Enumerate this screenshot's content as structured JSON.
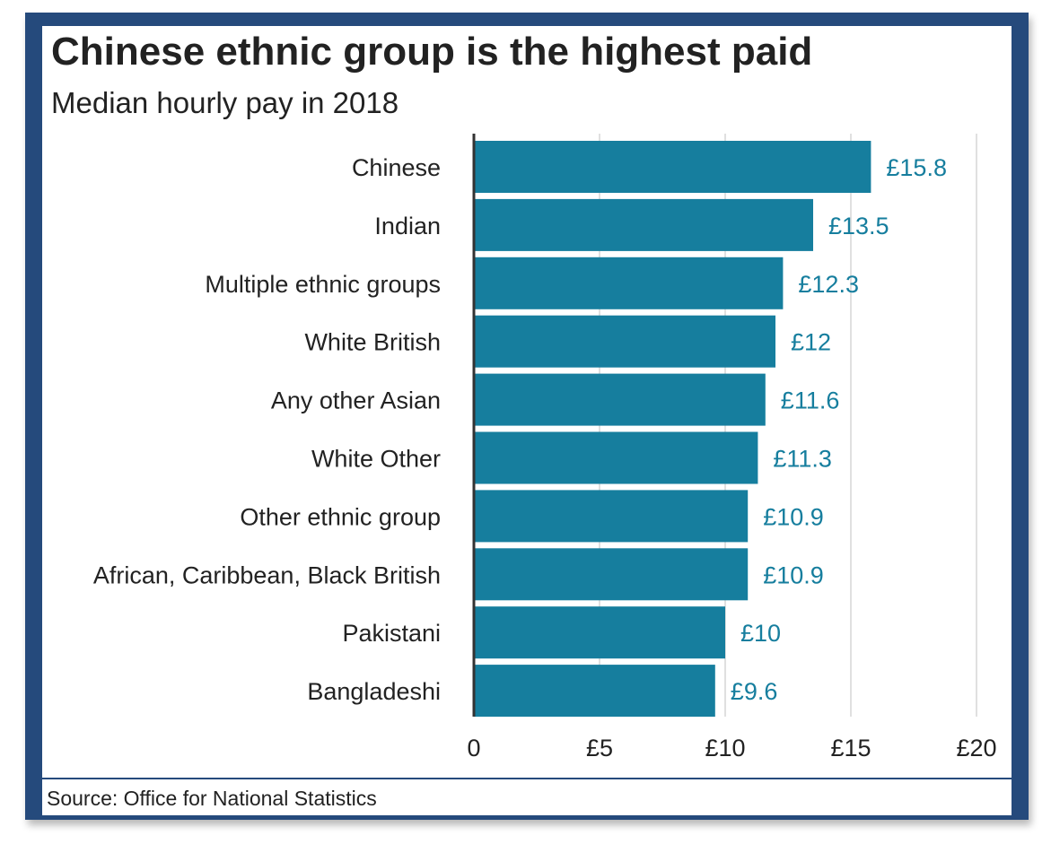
{
  "header": {
    "title": "Chinese ethnic group is the highest paid",
    "subtitle": "Median hourly pay in 2018"
  },
  "footer": {
    "source": "Source: Office for National Statistics"
  },
  "colors": {
    "bar": "#167e9e",
    "value_label": "#167e9e",
    "frame": "#254a7c",
    "text": "#222222",
    "gridline": "#d6d6d6"
  },
  "chart_data": {
    "type": "bar",
    "orientation": "horizontal",
    "title": "Chinese ethnic group is the highest paid",
    "subtitle": "Median hourly pay in 2018",
    "categories": [
      "Chinese",
      "Indian",
      "Multiple ethnic groups",
      "White British",
      "Any other Asian",
      "White Other",
      "Other ethnic group",
      "African, Caribbean, Black British",
      "Pakistani",
      "Bangladeshi"
    ],
    "values": [
      15.8,
      13.5,
      12.3,
      12,
      11.6,
      11.3,
      10.9,
      10.9,
      10,
      9.6
    ],
    "value_labels": [
      "£15.8",
      "£13.5",
      "£12.3",
      "£12",
      "£11.6",
      "£11.3",
      "£10.9",
      "£10.9",
      "£10",
      "£9.6"
    ],
    "xlim": [
      0,
      20
    ],
    "xticks": [
      0,
      5,
      10,
      15,
      20
    ],
    "xtick_labels": [
      "0",
      "£5",
      "£10",
      "£15",
      "£20"
    ],
    "grid": true,
    "source": "Source: Office for National Statistics"
  }
}
